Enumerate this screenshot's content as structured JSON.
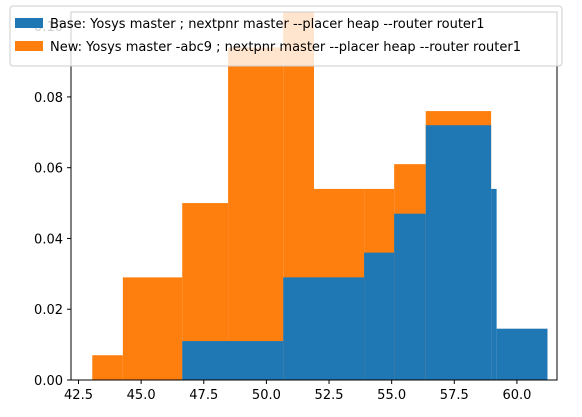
{
  "colors": {
    "base": "#1f77b4",
    "new": "#ff7f0e",
    "axis": "#000000",
    "legend_border": "#cccccc"
  },
  "chart_data": {
    "type": "bar",
    "subtype": "histogram",
    "title": "",
    "xlabel": "",
    "ylabel": "",
    "xlim": [
      42.2,
      61.6
    ],
    "ylim": [
      0,
      0.104
    ],
    "xticks": [
      42.5,
      45.0,
      47.5,
      50.0,
      52.5,
      55.0,
      57.5,
      60.0
    ],
    "xtick_labels": [
      "42.5",
      "45.0",
      "47.5",
      "50.0",
      "52.5",
      "55.0",
      "57.5",
      "60.0"
    ],
    "yticks": [
      0.0,
      0.02,
      0.04,
      0.06,
      0.08,
      0.1
    ],
    "ytick_labels": [
      "0.00",
      "0.02",
      "0.04",
      "0.06",
      "0.08",
      "0.10"
    ],
    "grid": false,
    "legend_position": "top-left",
    "series": [
      {
        "name": "Base: Yosys master  ; nextpnr master --placer heap --router router1",
        "color_key": "base",
        "bins": [
          {
            "x0": 46.64,
            "x1": 50.67,
            "y": 0.011
          },
          {
            "x0": 50.67,
            "x1": 51.9,
            "y": 0.029
          },
          {
            "x0": 51.9,
            "x1": 53.9,
            "y": 0.029
          },
          {
            "x0": 53.9,
            "x1": 55.1,
            "y": 0.036
          },
          {
            "x0": 55.1,
            "x1": 56.36,
            "y": 0.047
          },
          {
            "x0": 56.36,
            "x1": 58.97,
            "y": 0.072
          },
          {
            "x0": 58.97,
            "x1": 59.19,
            "y": 0.054
          },
          {
            "x0": 59.19,
            "x1": 61.22,
            "y": 0.0145
          }
        ]
      },
      {
        "name": "New: Yosys master -abc9 ; nextpnr master --placer heap --router router1",
        "color_key": "new",
        "bins": [
          {
            "x0": 43.05,
            "x1": 44.27,
            "y": 0.007
          },
          {
            "x0": 44.27,
            "x1": 46.64,
            "y": 0.029
          },
          {
            "x0": 46.64,
            "x1": 48.47,
            "y": 0.05
          },
          {
            "x0": 48.47,
            "x1": 50.67,
            "y": 0.094
          },
          {
            "x0": 50.67,
            "x1": 51.9,
            "y": 0.104
          },
          {
            "x0": 51.9,
            "x1": 53.9,
            "y": 0.054
          },
          {
            "x0": 53.9,
            "x1": 55.1,
            "y": 0.054
          },
          {
            "x0": 55.1,
            "x1": 56.36,
            "y": 0.061
          },
          {
            "x0": 56.36,
            "x1": 58.97,
            "y": 0.076
          }
        ]
      }
    ]
  }
}
